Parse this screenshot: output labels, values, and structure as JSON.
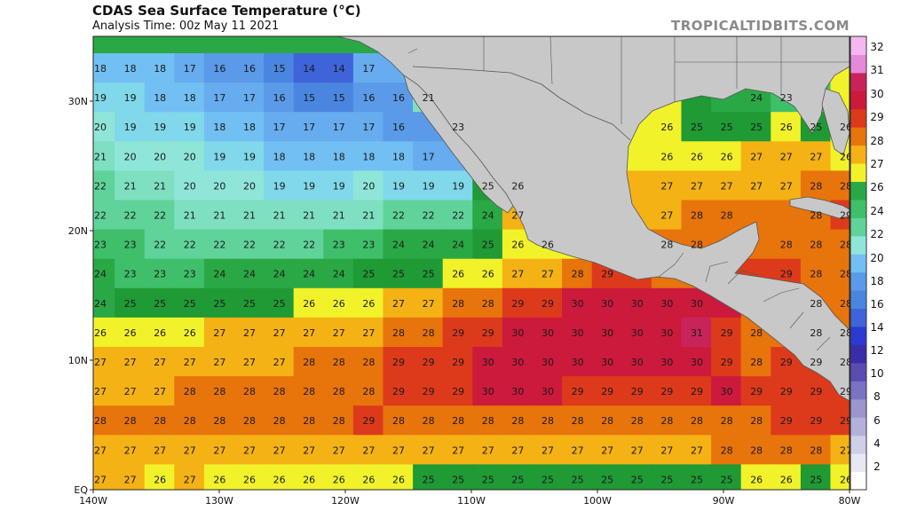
{
  "header": {
    "title": "CDAS Sea Surface Temperature (°C)",
    "subtitle": "Analysis Time: 00z May 11 2021",
    "brand": "TROPICALTIDBITS.COM"
  },
  "map": {
    "lon_range": [
      -140,
      -80
    ],
    "lat_range": [
      0,
      35
    ],
    "x_ticks": [
      "140W",
      "130W",
      "120W",
      "110W",
      "100W",
      "90W",
      "80W"
    ],
    "y_ticks": [
      "EQ",
      "10N",
      "20N",
      "30N"
    ],
    "land_color": "#c8c8c8",
    "border_color": "#555555"
  },
  "colorbar": {
    "labels": [
      "2",
      "4",
      "6",
      "8",
      "10",
      "12",
      "14",
      "16",
      "18",
      "20",
      "22",
      "24",
      "26",
      "27",
      "28",
      "29",
      "30",
      "31",
      "32"
    ]
  },
  "temps": [
    [
      18,
      18,
      18,
      17,
      16,
      16,
      15,
      14,
      14,
      17,
      null,
      null,
      null,
      null,
      null,
      null,
      null,
      null,
      null,
      null,
      null,
      null,
      null,
      null,
      null,
      null
    ],
    [
      19,
      19,
      18,
      18,
      17,
      17,
      16,
      15,
      15,
      16,
      16,
      21,
      null,
      null,
      null,
      null,
      null,
      null,
      null,
      null,
      null,
      null,
      24,
      23,
      null,
      null
    ],
    [
      20,
      19,
      19,
      19,
      18,
      18,
      17,
      17,
      17,
      17,
      16,
      null,
      23,
      null,
      null,
      null,
      null,
      null,
      null,
      26,
      25,
      25,
      25,
      26,
      25,
      26
    ],
    [
      21,
      20,
      20,
      20,
      19,
      19,
      18,
      18,
      18,
      18,
      18,
      17,
      null,
      null,
      null,
      null,
      null,
      null,
      null,
      26,
      26,
      26,
      27,
      27,
      27,
      26
    ],
    [
      22,
      21,
      21,
      20,
      20,
      20,
      19,
      19,
      19,
      20,
      19,
      19,
      19,
      25,
      26,
      null,
      null,
      null,
      null,
      27,
      27,
      27,
      27,
      27,
      28,
      28
    ],
    [
      22,
      22,
      22,
      21,
      21,
      21,
      21,
      21,
      21,
      21,
      22,
      22,
      22,
      24,
      27,
      null,
      null,
      null,
      null,
      27,
      28,
      28,
      null,
      null,
      28,
      29
    ],
    [
      23,
      23,
      22,
      22,
      22,
      22,
      22,
      22,
      23,
      23,
      24,
      24,
      24,
      25,
      26,
      26,
      null,
      null,
      null,
      28,
      28,
      null,
      null,
      28,
      28,
      28
    ],
    [
      24,
      23,
      23,
      23,
      24,
      24,
      24,
      24,
      24,
      25,
      25,
      25,
      26,
      26,
      27,
      27,
      28,
      29,
      null,
      null,
      null,
      null,
      null,
      29,
      28,
      28
    ],
    [
      24,
      25,
      25,
      25,
      25,
      25,
      25,
      26,
      26,
      26,
      27,
      27,
      28,
      28,
      29,
      29,
      30,
      30,
      30,
      30,
      30,
      null,
      null,
      null,
      28,
      28
    ],
    [
      26,
      26,
      26,
      26,
      27,
      27,
      27,
      27,
      27,
      27,
      28,
      28,
      29,
      29,
      30,
      30,
      30,
      30,
      30,
      30,
      31,
      29,
      28,
      null,
      28,
      28
    ],
    [
      27,
      27,
      27,
      27,
      27,
      27,
      27,
      28,
      28,
      28,
      29,
      29,
      29,
      30,
      30,
      30,
      30,
      30,
      30,
      30,
      30,
      29,
      28,
      29,
      29,
      28
    ],
    [
      27,
      27,
      27,
      28,
      28,
      28,
      28,
      28,
      28,
      28,
      29,
      29,
      29,
      30,
      30,
      30,
      29,
      29,
      29,
      29,
      29,
      30,
      29,
      29,
      29,
      29
    ],
    [
      28,
      28,
      28,
      28,
      28,
      28,
      28,
      28,
      28,
      29,
      28,
      28,
      28,
      28,
      28,
      28,
      28,
      28,
      28,
      28,
      28,
      28,
      28,
      29,
      29,
      29
    ],
    [
      27,
      27,
      27,
      27,
      27,
      27,
      27,
      27,
      27,
      27,
      27,
      27,
      27,
      27,
      27,
      27,
      27,
      27,
      27,
      27,
      27,
      28,
      28,
      28,
      28,
      27
    ],
    [
      27,
      27,
      26,
      27,
      26,
      26,
      26,
      26,
      26,
      26,
      26,
      25,
      25,
      25,
      25,
      25,
      25,
      25,
      25,
      25,
      25,
      25,
      26,
      26,
      25,
      26
    ]
  ]
}
